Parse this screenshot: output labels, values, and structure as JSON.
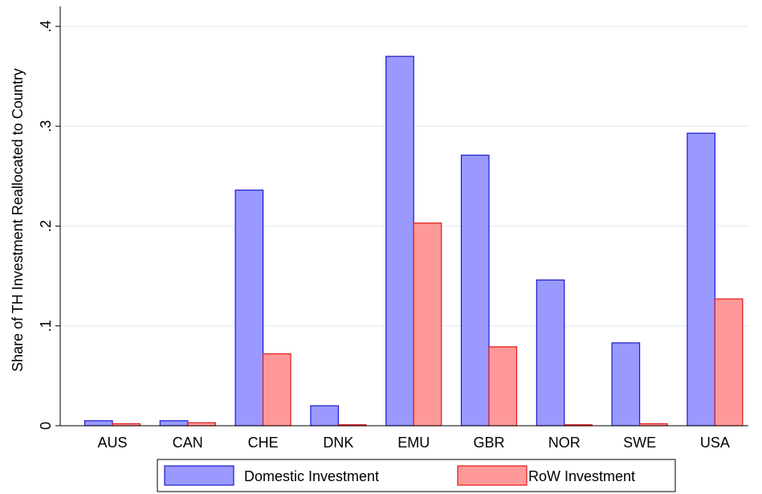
{
  "chart_data": {
    "type": "bar",
    "title": "",
    "xlabel": "",
    "ylabel": "Share of TH Investment Reallocated to Country",
    "ylim": [
      0,
      0.42
    ],
    "yticks": [
      0,
      0.1,
      0.2,
      0.3,
      0.4
    ],
    "ytick_labels": [
      "0",
      ".1",
      ".2",
      ".3",
      ".4"
    ],
    "grid": true,
    "legend_position": "bottom",
    "categories": [
      "AUS",
      "CAN",
      "CHE",
      "DNK",
      "EMU",
      "GBR",
      "NOR",
      "SWE",
      "USA"
    ],
    "series": [
      {
        "name": "Domestic Investment",
        "fill": "#9999ff",
        "stroke": "#1a1acc",
        "values": [
          0.005,
          0.005,
          0.236,
          0.02,
          0.37,
          0.271,
          0.146,
          0.083,
          0.293
        ]
      },
      {
        "name": "RoW Investment",
        "fill": "#ff9999",
        "stroke": "#e01818",
        "values": [
          0.002,
          0.003,
          0.072,
          0.001,
          0.203,
          0.079,
          0.001,
          0.002,
          0.127
        ]
      }
    ]
  }
}
